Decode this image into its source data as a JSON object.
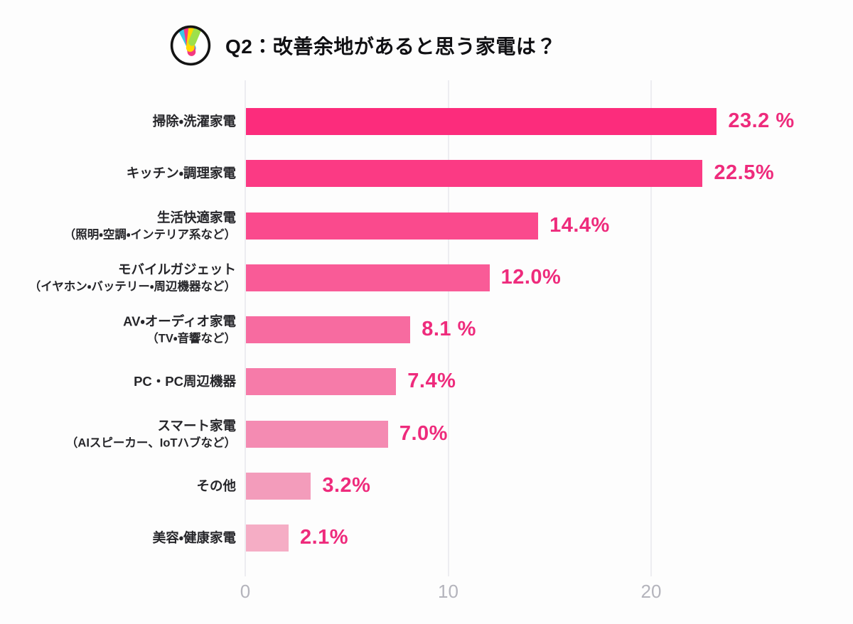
{
  "header": {
    "title": "Q2：改善余地があると思う家電は？",
    "logo": {
      "outline_color": "#141414",
      "bar_colors": {
        "cyan": "#38c8e8",
        "pink": "#f43a80",
        "yellow": "#ffd900",
        "green": "#9de04b"
      }
    }
  },
  "chart_data": {
    "type": "bar",
    "orientation": "horizontal",
    "title": "Q2：改善余地があると思う家電は？",
    "xlabel": "",
    "ylabel": "",
    "unit": "%",
    "x_ticks": [
      0,
      10,
      20
    ],
    "xlim": [
      0,
      29
    ],
    "grid": true,
    "value_text_color": "#ee2b7c",
    "categories": [
      "掃除・洗濯家電",
      "キッチン・調理家電",
      "生活快適家電（照明・空調・インテリア系など）",
      "モバイルガジェット（イヤホン・バッテリー・周辺機器など）",
      "AV・オーディオ家電（TV・音響など）",
      "PC・PC周辺機器",
      "スマート家電（AIスピーカー、IoTハブなど）",
      "その他",
      "美容・健康家電"
    ],
    "values": [
      23.2,
      22.5,
      14.4,
      12.0,
      8.1,
      7.4,
      7.0,
      3.2,
      2.1
    ],
    "rows": [
      {
        "label": "掃除・洗濯家電",
        "sublabel": "",
        "value": 23.2,
        "value_label": "23.2 %",
        "bar_color": "#fc2c7c"
      },
      {
        "label": "キッチン・調理家電",
        "sublabel": "",
        "value": 22.5,
        "value_label": "22.5%",
        "bar_color": "#fb3a84"
      },
      {
        "label": "生活快適家電",
        "sublabel": "（照明・空調・インテリア系など）",
        "value": 14.4,
        "value_label": "14.4%",
        "bar_color": "#fa4a8d"
      },
      {
        "label": "モバイルガジェット",
        "sublabel": "（イヤホン・バッテリー・周辺機器など）",
        "value": 12.0,
        "value_label": "12.0%",
        "bar_color": "#f95b97"
      },
      {
        "label": "AV・オーディオ家電",
        "sublabel": "（TV・音響など）",
        "value": 8.1,
        "value_label": "8.1 %",
        "bar_color": "#f76ba0"
      },
      {
        "label": "PC・PC周辺機器",
        "sublabel": "",
        "value": 7.4,
        "value_label": "7.4%",
        "bar_color": "#f67ba9"
      },
      {
        "label": "スマート家電",
        "sublabel": "（AIスピーカー、IoTハブなど）",
        "value": 7.0,
        "value_label": "7.0%",
        "bar_color": "#f48bb2"
      },
      {
        "label": "その他",
        "sublabel": "",
        "value": 3.2,
        "value_label": "3.2%",
        "bar_color": "#f39cbb"
      },
      {
        "label": "美容・健康家電",
        "sublabel": "",
        "value": 2.1,
        "value_label": "2.1%",
        "bar_color": "#f5adc5"
      }
    ]
  }
}
